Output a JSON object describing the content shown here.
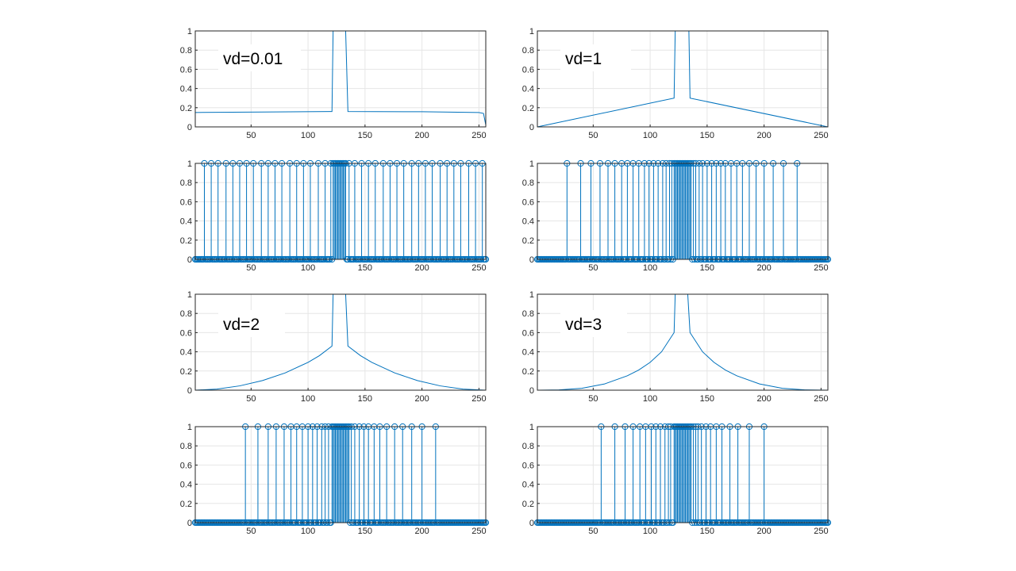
{
  "chart_data": [
    {
      "type": "line",
      "annotation": "vd=0.01",
      "xlim": [
        1,
        256
      ],
      "ylim": [
        0,
        1
      ],
      "xticks": [
        50,
        100,
        150,
        200,
        250
      ],
      "yticks": [
        0,
        0.2,
        0.4,
        0.6,
        0.8,
        1
      ],
      "ytick_labels": [
        "0",
        "0.2",
        "0.4",
        "0.6",
        "0.8",
        "1"
      ],
      "grid": true,
      "series": [
        {
          "color": "#0072BD",
          "points": [
            [
              1,
              0.15
            ],
            [
              60,
              0.155
            ],
            [
              120,
              0.16
            ],
            [
              121,
              0.16
            ],
            [
              122,
              1
            ],
            [
              133,
              1
            ],
            [
              135,
              0.16
            ],
            [
              200,
              0.158
            ],
            [
              250,
              0.15
            ],
            [
              254,
              0.14
            ],
            [
              256,
              0.02
            ]
          ]
        }
      ]
    },
    {
      "type": "line",
      "annotation": "vd=1",
      "xlim": [
        1,
        256
      ],
      "ylim": [
        0,
        1
      ],
      "xticks": [
        50,
        100,
        150,
        200,
        250
      ],
      "yticks": [
        0,
        0.2,
        0.4,
        0.6,
        0.8,
        1
      ],
      "ytick_labels": [
        "0",
        "0.2",
        "0.4",
        "0.6",
        "0.8",
        "1"
      ],
      "grid": true,
      "series": [
        {
          "color": "#0072BD",
          "points": [
            [
              1,
              0
            ],
            [
              121,
              0.3
            ],
            [
              122,
              1
            ],
            [
              134,
              1
            ],
            [
              135,
              0.3
            ],
            [
              256,
              0
            ]
          ]
        }
      ]
    },
    {
      "type": "stem",
      "xlim": [
        1,
        256
      ],
      "ylim": [
        0,
        1
      ],
      "xticks": [
        50,
        100,
        150,
        200,
        250
      ],
      "yticks": [
        0,
        0.2,
        0.4,
        0.6,
        0.8,
        1
      ],
      "ytick_labels": [
        "0",
        "0.2",
        "0.4",
        "0.6",
        "0.8",
        "1"
      ],
      "grid": true,
      "ones_ranges": [
        [
          122,
          133
        ]
      ],
      "ones": [
        9,
        15,
        21,
        28,
        34,
        40,
        46,
        52,
        59,
        65,
        71,
        77,
        84,
        90,
        96,
        102,
        109,
        115,
        120,
        136,
        141,
        147,
        153,
        159,
        166,
        172,
        178,
        184,
        191,
        197,
        203,
        209,
        216,
        222,
        228,
        234,
        241,
        247,
        253
      ]
    },
    {
      "type": "stem",
      "xlim": [
        1,
        256
      ],
      "ylim": [
        0,
        1
      ],
      "xticks": [
        50,
        100,
        150,
        200,
        250
      ],
      "yticks": [
        0,
        0.2,
        0.4,
        0.6,
        0.8,
        1
      ],
      "ytick_labels": [
        "0",
        "0.2",
        "0.4",
        "0.6",
        "0.8",
        "1"
      ],
      "grid": true,
      "ones_ranges": [
        [
          121,
          136
        ]
      ],
      "ones": [
        27,
        39,
        48,
        56,
        63,
        69,
        75,
        80,
        85,
        90,
        95,
        99,
        103,
        107,
        111,
        114,
        117,
        119,
        138,
        140,
        143,
        146,
        150,
        154,
        158,
        162,
        166,
        171,
        176,
        181,
        187,
        193,
        200,
        208,
        217,
        229
      ]
    },
    {
      "type": "line",
      "annotation": "vd=2",
      "xlim": [
        1,
        256
      ],
      "ylim": [
        0,
        1
      ],
      "xticks": [
        50,
        100,
        150,
        200,
        250
      ],
      "yticks": [
        0,
        0.2,
        0.4,
        0.6,
        0.8,
        1
      ],
      "ytick_labels": [
        "0",
        "0.2",
        "0.4",
        "0.6",
        "0.8",
        "1"
      ],
      "grid": true,
      "series": [
        {
          "color": "#0072BD",
          "points": [
            [
              1,
              0
            ],
            [
              20,
              0.011
            ],
            [
              40,
              0.045
            ],
            [
              60,
              0.1
            ],
            [
              80,
              0.18
            ],
            [
              100,
              0.29
            ],
            [
              110,
              0.36
            ],
            [
              121,
              0.46
            ],
            [
              122,
              1
            ],
            [
              133,
              1
            ],
            [
              135,
              0.46
            ],
            [
              146,
              0.36
            ],
            [
              156,
              0.29
            ],
            [
              176,
              0.18
            ],
            [
              196,
              0.1
            ],
            [
              216,
              0.045
            ],
            [
              236,
              0.011
            ],
            [
              256,
              0
            ]
          ]
        }
      ]
    },
    {
      "type": "line",
      "annotation": "vd=3",
      "xlim": [
        1,
        256
      ],
      "ylim": [
        0,
        1
      ],
      "xticks": [
        50,
        100,
        150,
        200,
        250
      ],
      "yticks": [
        0,
        0.2,
        0.4,
        0.6,
        0.8,
        1
      ],
      "ytick_labels": [
        "0",
        "0.2",
        "0.4",
        "0.6",
        "0.8",
        "1"
      ],
      "grid": true,
      "series": [
        {
          "color": "#0072BD",
          "points": [
            [
              1,
              0
            ],
            [
              20,
              0.003
            ],
            [
              40,
              0.02
            ],
            [
              60,
              0.065
            ],
            [
              80,
              0.15
            ],
            [
              90,
              0.21
            ],
            [
              100,
              0.29
            ],
            [
              110,
              0.4
            ],
            [
              121,
              0.6
            ],
            [
              122,
              1
            ],
            [
              133,
              1
            ],
            [
              135,
              0.6
            ],
            [
              146,
              0.4
            ],
            [
              156,
              0.29
            ],
            [
              166,
              0.21
            ],
            [
              176,
              0.15
            ],
            [
              196,
              0.065
            ],
            [
              216,
              0.02
            ],
            [
              236,
              0.003
            ],
            [
              256,
              0
            ]
          ]
        }
      ]
    },
    {
      "type": "stem",
      "xlim": [
        1,
        256
      ],
      "ylim": [
        0,
        1
      ],
      "xticks": [
        50,
        100,
        150,
        200,
        250
      ],
      "yticks": [
        0,
        0.2,
        0.4,
        0.6,
        0.8,
        1
      ],
      "ytick_labels": [
        "0",
        "0.2",
        "0.4",
        "0.6",
        "0.8",
        "1"
      ],
      "grid": true,
      "ones_ranges": [
        [
          121,
          136
        ]
      ],
      "ones": [
        45,
        56,
        65,
        72,
        79,
        85,
        90,
        95,
        100,
        104,
        108,
        112,
        115,
        118,
        138,
        141,
        145,
        149,
        153,
        158,
        163,
        169,
        176,
        183,
        191,
        200,
        212
      ]
    },
    {
      "type": "stem",
      "xlim": [
        1,
        256
      ],
      "ylim": [
        0,
        1
      ],
      "xticks": [
        50,
        100,
        150,
        200,
        250
      ],
      "yticks": [
        0,
        0.2,
        0.4,
        0.6,
        0.8,
        1
      ],
      "ytick_labels": [
        "0",
        "0.2",
        "0.4",
        "0.6",
        "0.8",
        "1"
      ],
      "grid": true,
      "ones_ranges": [
        [
          121,
          136
        ]
      ],
      "ones": [
        57,
        69,
        78,
        85,
        91,
        96,
        101,
        105,
        109,
        113,
        116,
        118,
        138,
        140,
        142,
        145,
        149,
        153,
        158,
        163,
        170,
        177,
        187,
        200
      ]
    }
  ]
}
